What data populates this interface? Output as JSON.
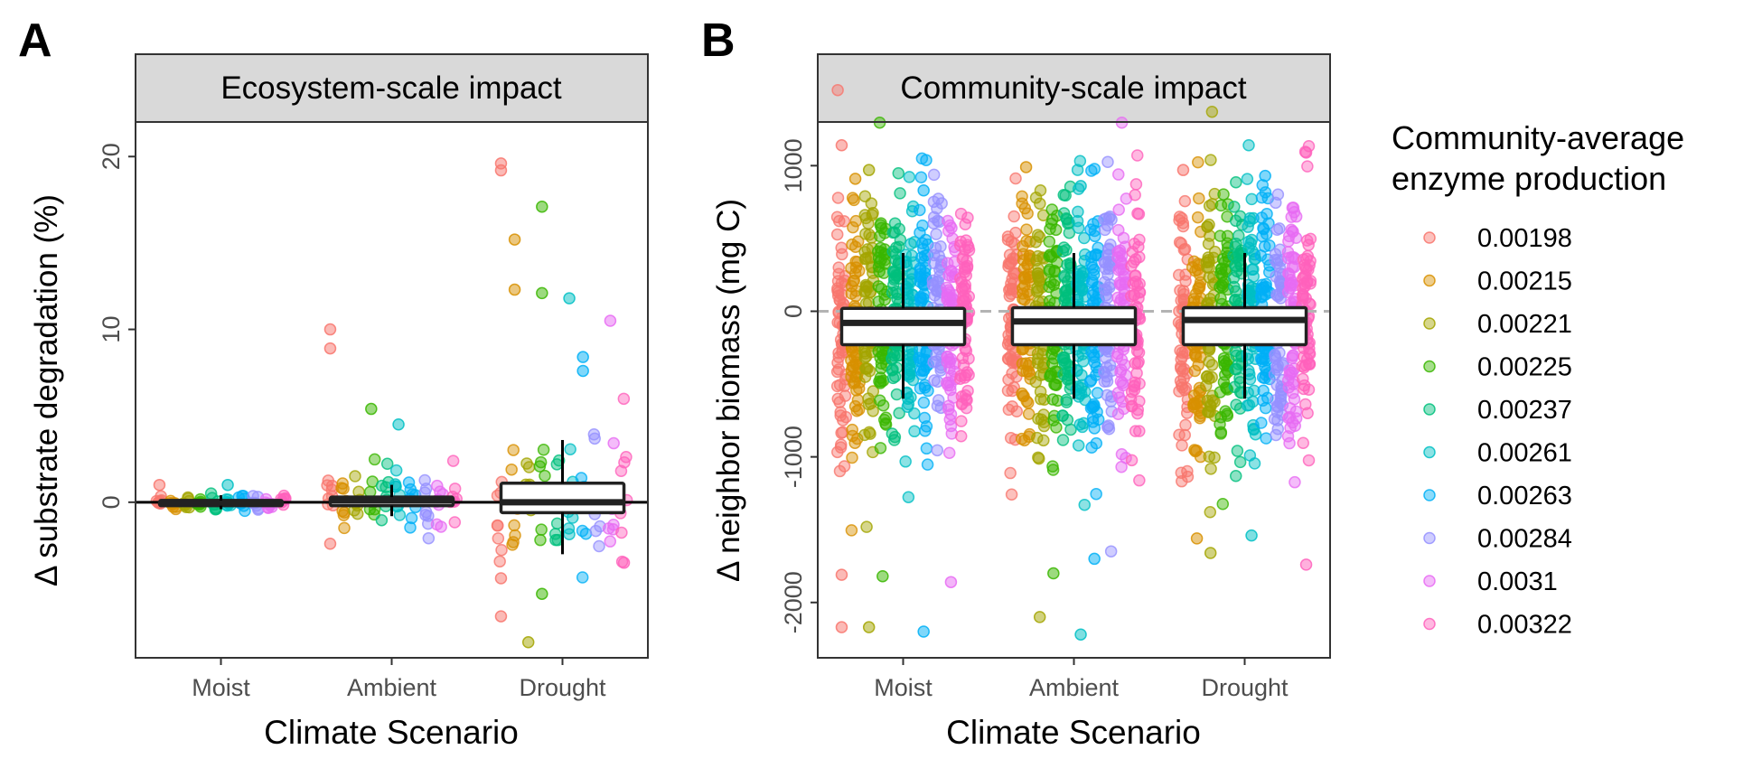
{
  "panels": [
    {
      "letter": "A",
      "strip": "Ecosystem-scale impact",
      "xlabel": "Climate Scenario",
      "ylabel": "Δ substrate degradation (%)"
    },
    {
      "letter": "B",
      "strip": "Community-scale impact",
      "xlabel": "Climate Scenario",
      "ylabel": "Δ neighbor biomass (mg C)"
    }
  ],
  "legend": {
    "title_line1": "Community-average",
    "title_line2": "enzyme production",
    "items": [
      "0.00198",
      "0.00215",
      "0.00221",
      "0.00225",
      "0.00237",
      "0.00261",
      "0.00263",
      "0.00284",
      "0.0031",
      "0.00322"
    ],
    "colors": [
      "#F8766D",
      "#D89000",
      "#A3A500",
      "#39B600",
      "#00BF7D",
      "#00BFC4",
      "#00B0F6",
      "#9590FF",
      "#E76BF3",
      "#FF62BC"
    ]
  },
  "chart_data": [
    {
      "type": "scatter",
      "title": "Ecosystem-scale impact",
      "xlabel": "Climate Scenario",
      "ylabel": "Δ substrate degradation (%)",
      "categories": [
        "Moist",
        "Ambient",
        "Drought"
      ],
      "ylim": [
        -9,
        22
      ],
      "yticks": [
        0,
        10,
        20
      ],
      "reference_line": {
        "y": 0,
        "style": "solid"
      },
      "boxplots": [
        {
          "category": "Moist",
          "q1": -0.2,
          "median": 0,
          "q3": 0.1,
          "whisker_low": -0.4,
          "whisker_high": 0.4
        },
        {
          "category": "Ambient",
          "q1": -0.2,
          "median": 0.1,
          "q3": 0.3,
          "whisker_low": -0.8,
          "whisker_high": 1.0
        },
        {
          "category": "Drought",
          "q1": -0.6,
          "median": 0,
          "q3": 1.1,
          "whisker_low": -3.0,
          "whisker_high": 3.6
        }
      ],
      "highlighted_points": [
        {
          "category": "Moist",
          "series": "0.00198",
          "y": 1.0
        },
        {
          "category": "Moist",
          "series": "0.00261",
          "y": 1.0
        },
        {
          "category": "Ambient",
          "series": "0.00198",
          "y": 10.0
        },
        {
          "category": "Ambient",
          "series": "0.00198",
          "y": 8.9
        },
        {
          "category": "Ambient",
          "series": "0.00225",
          "y": 5.4
        },
        {
          "category": "Ambient",
          "series": "0.00261",
          "y": 4.5
        },
        {
          "category": "Ambient",
          "series": "0.00198",
          "y": -2.4
        },
        {
          "category": "Drought",
          "series": "0.00198",
          "y": 19.6
        },
        {
          "category": "Drought",
          "series": "0.00198",
          "y": 19.2
        },
        {
          "category": "Drought",
          "series": "0.00225",
          "y": 17.1
        },
        {
          "category": "Drought",
          "series": "0.00215",
          "y": 15.2
        },
        {
          "category": "Drought",
          "series": "0.00215",
          "y": 12.3
        },
        {
          "category": "Drought",
          "series": "0.00225",
          "y": 12.1
        },
        {
          "category": "Drought",
          "series": "0.00261",
          "y": 11.8
        },
        {
          "category": "Drought",
          "series": "0.0031",
          "y": 10.5
        },
        {
          "category": "Drought",
          "series": "0.00263",
          "y": 8.4
        },
        {
          "category": "Drought",
          "series": "0.00263",
          "y": 7.6
        },
        {
          "category": "Drought",
          "series": "0.00198",
          "y": -4.4
        },
        {
          "category": "Drought",
          "series": "0.00225",
          "y": -5.3
        },
        {
          "category": "Drought",
          "series": "0.00198",
          "y": -6.6
        },
        {
          "category": "Drought",
          "series": "0.00221",
          "y": -8.1
        },
        {
          "category": "Drought",
          "series": "0.00322",
          "y": -3.5
        }
      ]
    },
    {
      "type": "scatter",
      "title": "Community-scale impact",
      "xlabel": "Climate Scenario",
      "ylabel": "Δ neighbor biomass (mg C)",
      "categories": [
        "Moist",
        "Ambient",
        "Drought"
      ],
      "ylim": [
        -2380,
        1300
      ],
      "yticks": [
        -2000,
        -1000,
        0,
        1000
      ],
      "reference_line": {
        "y": 0,
        "style": "dashed"
      },
      "boxplots": [
        {
          "category": "Moist",
          "q1": -230,
          "median": -80,
          "q3": 20,
          "whisker_low": -600,
          "whisker_high": 400
        },
        {
          "category": "Ambient",
          "q1": -230,
          "median": -70,
          "q3": 25,
          "whisker_low": -600,
          "whisker_high": 400
        },
        {
          "category": "Drought",
          "q1": -230,
          "median": -60,
          "q3": 25,
          "whisker_low": -600,
          "whisker_high": 400
        }
      ],
      "highlighted_points": [
        {
          "category": "Moist",
          "series": "0.00198",
          "y": 1140
        },
        {
          "category": "Moist",
          "series": "0.00221",
          "y": 970
        },
        {
          "category": "Moist",
          "series": "0.00215",
          "y": 910
        },
        {
          "category": "Moist",
          "series": "0.00263",
          "y": 830
        },
        {
          "category": "Moist",
          "series": "0.00198",
          "y": -2170
        },
        {
          "category": "Moist",
          "series": "0.00221",
          "y": -2170
        },
        {
          "category": "Moist",
          "series": "0.00263",
          "y": -2200
        },
        {
          "category": "Moist",
          "series": "0.0031",
          "y": -1860
        },
        {
          "category": "Moist",
          "series": "0.00225",
          "y": -1820
        },
        {
          "category": "Moist",
          "series": "0.00198",
          "y": -1810
        },
        {
          "category": "Ambient",
          "series": "0.00215",
          "y": 990
        },
        {
          "category": "Ambient",
          "series": "0.00261",
          "y": 860
        },
        {
          "category": "Ambient",
          "series": "0.00221",
          "y": -2100
        },
        {
          "category": "Ambient",
          "series": "0.00261",
          "y": -2220
        },
        {
          "category": "Ambient",
          "series": "0.00225",
          "y": -1800
        },
        {
          "category": "Ambient",
          "series": "0.00263",
          "y": -1700
        },
        {
          "category": "Drought",
          "series": "0.00198",
          "y": 970
        },
        {
          "category": "Drought",
          "series": "0.00263",
          "y": 930
        },
        {
          "category": "Drought",
          "series": "0.00322",
          "y": 1090
        },
        {
          "category": "Drought",
          "series": "0.00221",
          "y": -1660
        },
        {
          "category": "Drought",
          "series": "0.00215",
          "y": -1560
        },
        {
          "category": "Drought",
          "series": "0.00322",
          "y": -1740
        },
        {
          "category": "Drought",
          "series": "0.00261",
          "y": -1540
        }
      ]
    }
  ]
}
